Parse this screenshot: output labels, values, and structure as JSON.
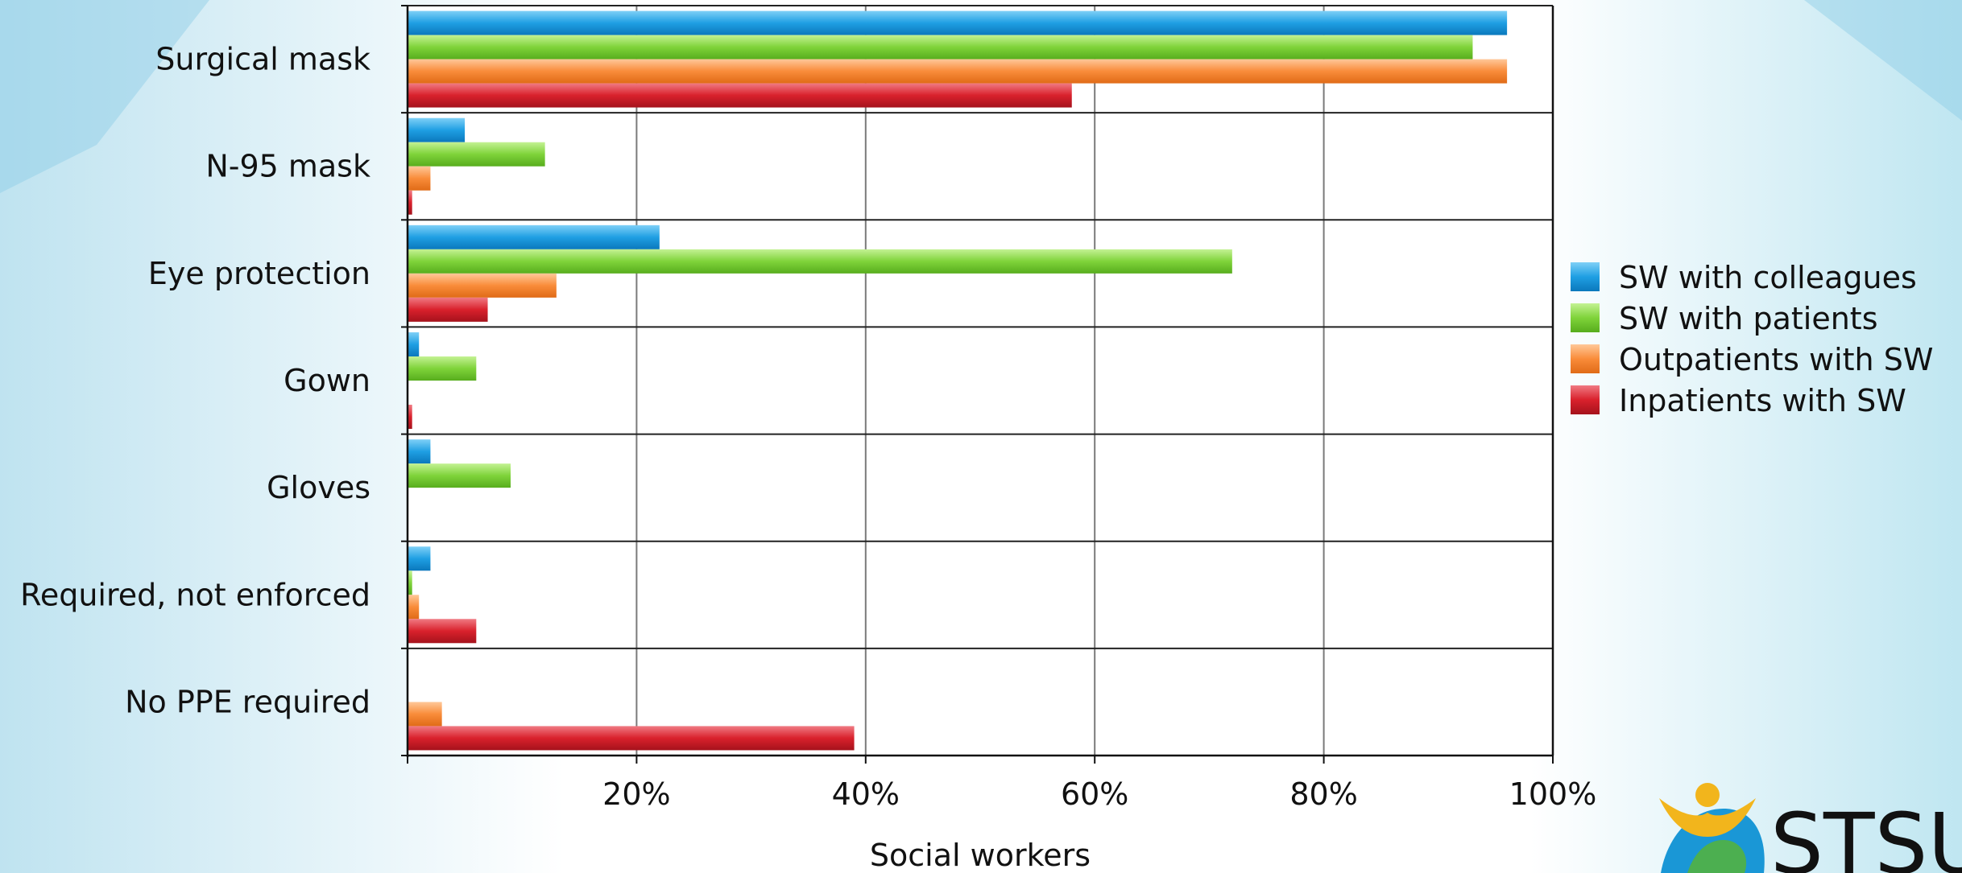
{
  "chart_data": {
    "type": "bar",
    "orientation": "horizontal",
    "categories": [
      "Surgical mask",
      "N-95 mask",
      "Eye protection",
      "Gown",
      "Gloves",
      "Required, not enforced",
      "No PPE required"
    ],
    "series": [
      {
        "name": "SW with colleagues",
        "color": "#1f9fe3",
        "values": [
          96,
          5,
          22,
          1,
          2,
          2,
          0
        ]
      },
      {
        "name": "SW with patients",
        "color": "#7fd33a",
        "values": [
          93,
          12,
          72,
          6,
          9,
          0.4,
          0
        ]
      },
      {
        "name": "Outpatients with SW",
        "color": "#f98c3a",
        "values": [
          96,
          2,
          13,
          0,
          0,
          1,
          3
        ]
      },
      {
        "name": "Inpatients with SW",
        "color": "#d9212c",
        "values": [
          58,
          0.4,
          7,
          0.4,
          0,
          6,
          39
        ]
      }
    ],
    "xlim": [
      0,
      100
    ],
    "xticks": [
      20,
      40,
      60,
      80,
      100
    ],
    "xtick_labels": [
      "20%",
      "40%",
      "60%",
      "80%",
      "100%"
    ],
    "xlabel": "Social workers",
    "ylabel": "",
    "title": "",
    "grid": "vertical",
    "legend_position": "right"
  },
  "logo": {
    "text": "STSU",
    "colors": {
      "figure": "#f2b51c",
      "ribbon_blue": "#1a97d6",
      "ribbon_green": "#4caf50"
    }
  },
  "background": {
    "accent": "#2aa7d8"
  }
}
